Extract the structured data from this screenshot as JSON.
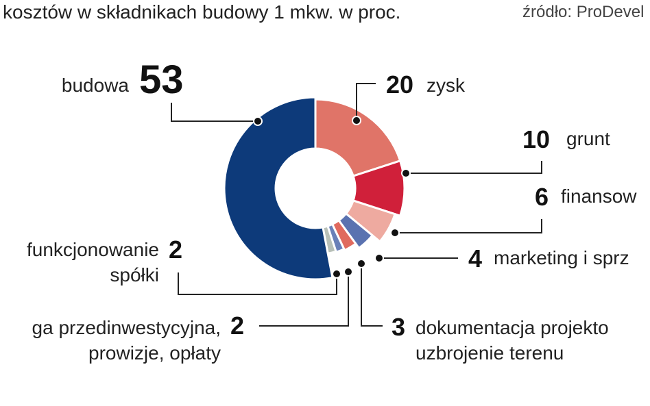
{
  "chart_data": {
    "type": "pie",
    "title": "kosztów w składnikach budowy 1 mkw. w proc.",
    "source": "źródło: ProDevel",
    "categories": [
      "zysk",
      "grunt",
      "finansow",
      "marketing i sprz",
      "dokumentacja projekto\nuzbrojenie terenu",
      "ga przedinwestycyjna,\nprowizje, opłaty",
      "funkcjonowanie\nspółki",
      "budowa"
    ],
    "values": [
      20,
      10,
      6,
      4,
      3,
      2,
      2,
      53
    ],
    "colors": [
      "#e07468",
      "#d0203a",
      "#eeaaa0",
      "#5a72b0",
      "#e06a5e",
      "#6a80b8",
      "#b8c0b8",
      "#0d3a7a"
    ]
  }
}
